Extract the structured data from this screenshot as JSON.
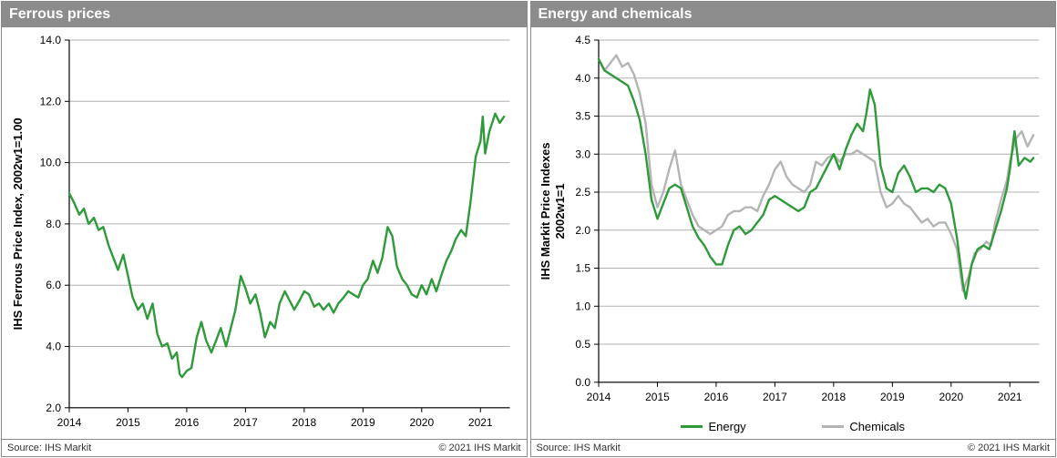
{
  "palette": {
    "header_bg": "#8c8c8c",
    "header_fg": "#ffffff",
    "panel_border": "#8a8a8a",
    "axis_color": "#000000",
    "grid_color": "#b0b0b0",
    "tick_font_size": 12,
    "axis_title_font_size": 13,
    "line_width": 2.4
  },
  "left": {
    "title": "Ferrous prices",
    "type": "line",
    "ylabel": "IHS Ferrous Price Index, 2002w1=1.00",
    "x": {
      "min": 2014,
      "max": 2021.5,
      "ticks": [
        2014,
        2015,
        2016,
        2017,
        2018,
        2019,
        2020,
        2021
      ]
    },
    "y": {
      "min": 2.0,
      "max": 14.0,
      "ticks": [
        2.0,
        4.0,
        6.0,
        8.0,
        10.0,
        12.0,
        14.0
      ]
    },
    "series": [
      {
        "name": "Ferrous",
        "color": "#2e9a3a",
        "points": [
          [
            2014.0,
            9.0
          ],
          [
            2014.08,
            8.7
          ],
          [
            2014.17,
            8.3
          ],
          [
            2014.25,
            8.5
          ],
          [
            2014.33,
            8.0
          ],
          [
            2014.42,
            8.2
          ],
          [
            2014.5,
            7.8
          ],
          [
            2014.58,
            7.9
          ],
          [
            2014.67,
            7.3
          ],
          [
            2014.75,
            6.9
          ],
          [
            2014.83,
            6.5
          ],
          [
            2014.92,
            7.0
          ],
          [
            2015.0,
            6.3
          ],
          [
            2015.08,
            5.6
          ],
          [
            2015.17,
            5.2
          ],
          [
            2015.25,
            5.4
          ],
          [
            2015.33,
            4.9
          ],
          [
            2015.42,
            5.4
          ],
          [
            2015.5,
            4.4
          ],
          [
            2015.58,
            4.0
          ],
          [
            2015.67,
            4.1
          ],
          [
            2015.75,
            3.6
          ],
          [
            2015.83,
            3.8
          ],
          [
            2015.88,
            3.1
          ],
          [
            2015.92,
            3.0
          ],
          [
            2016.0,
            3.2
          ],
          [
            2016.08,
            3.3
          ],
          [
            2016.17,
            4.3
          ],
          [
            2016.25,
            4.8
          ],
          [
            2016.33,
            4.2
          ],
          [
            2016.42,
            3.8
          ],
          [
            2016.5,
            4.2
          ],
          [
            2016.58,
            4.6
          ],
          [
            2016.67,
            4.0
          ],
          [
            2016.75,
            4.6
          ],
          [
            2016.83,
            5.2
          ],
          [
            2016.92,
            6.3
          ],
          [
            2017.0,
            5.9
          ],
          [
            2017.08,
            5.4
          ],
          [
            2017.17,
            5.7
          ],
          [
            2017.25,
            5.1
          ],
          [
            2017.33,
            4.3
          ],
          [
            2017.42,
            4.8
          ],
          [
            2017.5,
            4.6
          ],
          [
            2017.58,
            5.4
          ],
          [
            2017.67,
            5.8
          ],
          [
            2017.75,
            5.5
          ],
          [
            2017.83,
            5.2
          ],
          [
            2017.92,
            5.5
          ],
          [
            2018.0,
            5.8
          ],
          [
            2018.08,
            5.7
          ],
          [
            2018.17,
            5.3
          ],
          [
            2018.25,
            5.4
          ],
          [
            2018.33,
            5.2
          ],
          [
            2018.42,
            5.4
          ],
          [
            2018.5,
            5.1
          ],
          [
            2018.58,
            5.4
          ],
          [
            2018.67,
            5.6
          ],
          [
            2018.75,
            5.8
          ],
          [
            2018.83,
            5.7
          ],
          [
            2018.92,
            5.6
          ],
          [
            2019.0,
            6.0
          ],
          [
            2019.08,
            6.2
          ],
          [
            2019.17,
            6.8
          ],
          [
            2019.25,
            6.4
          ],
          [
            2019.33,
            6.9
          ],
          [
            2019.42,
            7.9
          ],
          [
            2019.5,
            7.6
          ],
          [
            2019.58,
            6.6
          ],
          [
            2019.67,
            6.2
          ],
          [
            2019.75,
            6.0
          ],
          [
            2019.83,
            5.7
          ],
          [
            2019.92,
            5.6
          ],
          [
            2020.0,
            6.0
          ],
          [
            2020.08,
            5.7
          ],
          [
            2020.17,
            6.2
          ],
          [
            2020.25,
            5.8
          ],
          [
            2020.33,
            6.3
          ],
          [
            2020.42,
            6.8
          ],
          [
            2020.5,
            7.1
          ],
          [
            2020.58,
            7.5
          ],
          [
            2020.67,
            7.8
          ],
          [
            2020.75,
            7.6
          ],
          [
            2020.83,
            8.7
          ],
          [
            2020.92,
            10.2
          ],
          [
            2021.0,
            10.7
          ],
          [
            2021.04,
            11.5
          ],
          [
            2021.08,
            10.3
          ],
          [
            2021.15,
            11.0
          ],
          [
            2021.25,
            11.6
          ],
          [
            2021.33,
            11.3
          ],
          [
            2021.4,
            11.5
          ]
        ]
      }
    ],
    "footer": {
      "source": "Source: IHS Markit",
      "copyright": "© 2021 IHS Markit"
    }
  },
  "right": {
    "title": "Energy and chemicals",
    "type": "line",
    "ylabel": "IHS Markit Price Indexes 2002w1=1",
    "x": {
      "min": 2014,
      "max": 2021.5,
      "ticks": [
        2014,
        2015,
        2016,
        2017,
        2018,
        2019,
        2020,
        2021
      ]
    },
    "y": {
      "min": 0.0,
      "max": 4.5,
      "ticks": [
        0.0,
        0.5,
        1.0,
        1.5,
        2.0,
        2.5,
        3.0,
        3.5,
        4.0,
        4.5
      ]
    },
    "legend": [
      {
        "label": "Energy",
        "color": "#2e9a3a"
      },
      {
        "label": "Chemicals",
        "color": "#b4b4b4"
      }
    ],
    "series": [
      {
        "name": "Chemicals",
        "color": "#b4b4b4",
        "points": [
          [
            2014.0,
            4.25
          ],
          [
            2014.1,
            4.1
          ],
          [
            2014.2,
            4.2
          ],
          [
            2014.3,
            4.3
          ],
          [
            2014.4,
            4.15
          ],
          [
            2014.5,
            4.2
          ],
          [
            2014.6,
            4.05
          ],
          [
            2014.7,
            3.8
          ],
          [
            2014.8,
            3.4
          ],
          [
            2014.9,
            2.6
          ],
          [
            2015.0,
            2.3
          ],
          [
            2015.1,
            2.5
          ],
          [
            2015.2,
            2.8
          ],
          [
            2015.3,
            3.05
          ],
          [
            2015.4,
            2.6
          ],
          [
            2015.5,
            2.4
          ],
          [
            2015.6,
            2.2
          ],
          [
            2015.7,
            2.05
          ],
          [
            2015.8,
            2.0
          ],
          [
            2015.9,
            1.95
          ],
          [
            2016.0,
            2.0
          ],
          [
            2016.1,
            2.05
          ],
          [
            2016.2,
            2.2
          ],
          [
            2016.3,
            2.25
          ],
          [
            2016.4,
            2.25
          ],
          [
            2016.5,
            2.3
          ],
          [
            2016.6,
            2.3
          ],
          [
            2016.7,
            2.25
          ],
          [
            2016.8,
            2.45
          ],
          [
            2016.9,
            2.6
          ],
          [
            2017.0,
            2.8
          ],
          [
            2017.1,
            2.9
          ],
          [
            2017.2,
            2.7
          ],
          [
            2017.3,
            2.6
          ],
          [
            2017.4,
            2.55
          ],
          [
            2017.5,
            2.5
          ],
          [
            2017.6,
            2.6
          ],
          [
            2017.7,
            2.9
          ],
          [
            2017.8,
            2.85
          ],
          [
            2017.9,
            2.95
          ],
          [
            2018.0,
            3.0
          ],
          [
            2018.1,
            2.9
          ],
          [
            2018.2,
            3.0
          ],
          [
            2018.3,
            3.0
          ],
          [
            2018.4,
            3.05
          ],
          [
            2018.5,
            3.0
          ],
          [
            2018.6,
            2.95
          ],
          [
            2018.7,
            2.9
          ],
          [
            2018.8,
            2.5
          ],
          [
            2018.9,
            2.3
          ],
          [
            2019.0,
            2.35
          ],
          [
            2019.1,
            2.45
          ],
          [
            2019.2,
            2.35
          ],
          [
            2019.3,
            2.3
          ],
          [
            2019.4,
            2.2
          ],
          [
            2019.5,
            2.1
          ],
          [
            2019.6,
            2.15
          ],
          [
            2019.7,
            2.05
          ],
          [
            2019.8,
            2.1
          ],
          [
            2019.9,
            2.1
          ],
          [
            2020.0,
            1.95
          ],
          [
            2020.1,
            1.75
          ],
          [
            2020.2,
            1.2
          ],
          [
            2020.3,
            1.4
          ],
          [
            2020.4,
            1.7
          ],
          [
            2020.5,
            1.75
          ],
          [
            2020.6,
            1.85
          ],
          [
            2020.68,
            1.8
          ],
          [
            2020.75,
            2.1
          ],
          [
            2020.85,
            2.4
          ],
          [
            2020.95,
            2.65
          ],
          [
            2021.0,
            2.9
          ],
          [
            2021.1,
            3.2
          ],
          [
            2021.2,
            3.3
          ],
          [
            2021.3,
            3.1
          ],
          [
            2021.4,
            3.25
          ]
        ]
      },
      {
        "name": "Energy",
        "color": "#2e9a3a",
        "points": [
          [
            2014.0,
            4.25
          ],
          [
            2014.1,
            4.1
          ],
          [
            2014.2,
            4.05
          ],
          [
            2014.3,
            4.0
          ],
          [
            2014.4,
            3.95
          ],
          [
            2014.5,
            3.9
          ],
          [
            2014.6,
            3.7
          ],
          [
            2014.7,
            3.45
          ],
          [
            2014.8,
            3.0
          ],
          [
            2014.9,
            2.4
          ],
          [
            2015.0,
            2.15
          ],
          [
            2015.1,
            2.35
          ],
          [
            2015.2,
            2.55
          ],
          [
            2015.3,
            2.6
          ],
          [
            2015.4,
            2.55
          ],
          [
            2015.5,
            2.3
          ],
          [
            2015.6,
            2.05
          ],
          [
            2015.7,
            1.9
          ],
          [
            2015.8,
            1.8
          ],
          [
            2015.9,
            1.65
          ],
          [
            2016.0,
            1.55
          ],
          [
            2016.1,
            1.55
          ],
          [
            2016.2,
            1.8
          ],
          [
            2016.3,
            2.0
          ],
          [
            2016.4,
            2.05
          ],
          [
            2016.5,
            1.95
          ],
          [
            2016.6,
            2.0
          ],
          [
            2016.7,
            2.1
          ],
          [
            2016.8,
            2.2
          ],
          [
            2016.9,
            2.4
          ],
          [
            2017.0,
            2.45
          ],
          [
            2017.1,
            2.4
          ],
          [
            2017.2,
            2.35
          ],
          [
            2017.3,
            2.3
          ],
          [
            2017.4,
            2.25
          ],
          [
            2017.5,
            2.3
          ],
          [
            2017.6,
            2.5
          ],
          [
            2017.7,
            2.55
          ],
          [
            2017.8,
            2.7
          ],
          [
            2017.9,
            2.85
          ],
          [
            2018.0,
            3.0
          ],
          [
            2018.1,
            2.8
          ],
          [
            2018.2,
            3.05
          ],
          [
            2018.3,
            3.25
          ],
          [
            2018.4,
            3.4
          ],
          [
            2018.5,
            3.3
          ],
          [
            2018.56,
            3.55
          ],
          [
            2018.62,
            3.85
          ],
          [
            2018.7,
            3.65
          ],
          [
            2018.8,
            2.85
          ],
          [
            2018.9,
            2.55
          ],
          [
            2019.0,
            2.5
          ],
          [
            2019.1,
            2.75
          ],
          [
            2019.2,
            2.85
          ],
          [
            2019.3,
            2.7
          ],
          [
            2019.4,
            2.5
          ],
          [
            2019.5,
            2.55
          ],
          [
            2019.6,
            2.55
          ],
          [
            2019.7,
            2.5
          ],
          [
            2019.8,
            2.6
          ],
          [
            2019.9,
            2.55
          ],
          [
            2020.0,
            2.35
          ],
          [
            2020.1,
            1.9
          ],
          [
            2020.2,
            1.3
          ],
          [
            2020.25,
            1.1
          ],
          [
            2020.35,
            1.55
          ],
          [
            2020.45,
            1.75
          ],
          [
            2020.55,
            1.8
          ],
          [
            2020.65,
            1.75
          ],
          [
            2020.75,
            2.0
          ],
          [
            2020.85,
            2.25
          ],
          [
            2020.95,
            2.55
          ],
          [
            2021.0,
            2.8
          ],
          [
            2021.08,
            3.3
          ],
          [
            2021.15,
            2.85
          ],
          [
            2021.25,
            2.95
          ],
          [
            2021.35,
            2.9
          ],
          [
            2021.4,
            2.95
          ]
        ]
      }
    ],
    "footer": {
      "source": "Source: IHS Markit",
      "copyright": "© 2021 IHS Markit"
    }
  }
}
